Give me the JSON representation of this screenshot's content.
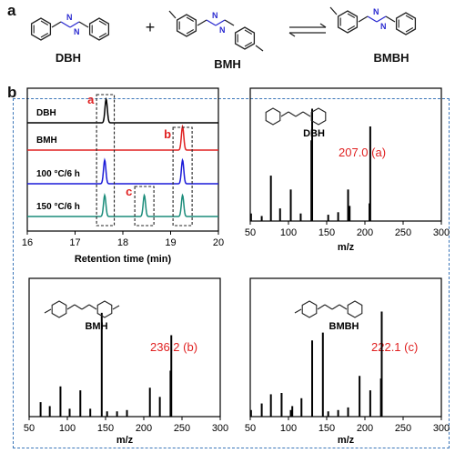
{
  "panel_labels": {
    "a": "a",
    "b": "b"
  },
  "scheme": {
    "compounds": [
      {
        "label": "DBH"
      },
      {
        "label": "BMH"
      },
      {
        "label": "BMBH"
      }
    ],
    "plus": "+",
    "azine_n": "N"
  },
  "colors": {
    "dbh": "#000000",
    "bmh": "#e02020",
    "t100": "#1a1ad8",
    "t150": "#1a8c7a",
    "annot": "#e02020",
    "frame": "#3b76b9",
    "ntext": "#2a2ad0"
  },
  "chart_data": [
    {
      "type": "line",
      "title": "",
      "xlabel": "Retention time (min)",
      "ylabel": "",
      "xlim": [
        16,
        20
      ],
      "xticks": [
        16,
        17,
        18,
        19,
        20
      ],
      "series": [
        {
          "name": "DBH",
          "color": "#000000",
          "peaks": [
            {
              "x": 17.65,
              "height": 1.0
            }
          ]
        },
        {
          "name": "BMH",
          "color": "#e02020",
          "peaks": [
            {
              "x": 19.25,
              "height": 1.0
            }
          ]
        },
        {
          "name": "100 °C/6 h",
          "color": "#1a1ad8",
          "peaks": [
            {
              "x": 17.62,
              "height": 1.0
            },
            {
              "x": 19.25,
              "height": 1.0
            }
          ]
        },
        {
          "name": "150 °C/6 h",
          "color": "#1a8c7a",
          "peaks": [
            {
              "x": 17.62,
              "height": 0.9
            },
            {
              "x": 18.45,
              "height": 0.9
            },
            {
              "x": 19.25,
              "height": 0.9
            }
          ]
        }
      ],
      "annotations": [
        {
          "text": "a",
          "x_range": [
            17.45,
            17.82
          ]
        },
        {
          "text": "c",
          "x_range": [
            18.25,
            18.65
          ]
        },
        {
          "text": "b",
          "x_range": [
            19.05,
            19.45
          ]
        }
      ]
    },
    {
      "type": "bar",
      "title": "DBH",
      "xlabel": "m/z",
      "xlim": [
        50,
        300
      ],
      "xticks": [
        50,
        100,
        150,
        200,
        250,
        300
      ],
      "annotation": "207.0 (a)",
      "x": [
        51,
        65,
        77,
        89,
        103,
        116,
        130,
        131,
        152,
        165,
        178,
        180,
        206,
        207
      ],
      "values": [
        0.06,
        0.04,
        0.36,
        0.1,
        0.25,
        0.06,
        0.64,
        0.89,
        0.05,
        0.07,
        0.25,
        0.12,
        0.14,
        0.75
      ]
    },
    {
      "type": "bar",
      "title": "BMH",
      "xlabel": "m/z",
      "xlim": [
        50,
        300
      ],
      "xticks": [
        50,
        100,
        150,
        200,
        250,
        300
      ],
      "annotation": "236.2 (b)",
      "x": [
        65,
        77,
        91,
        103,
        117,
        130,
        145,
        152,
        165,
        178,
        208,
        221,
        235,
        236
      ],
      "values": [
        0.11,
        0.08,
        0.23,
        0.06,
        0.2,
        0.06,
        0.79,
        0.04,
        0.04,
        0.05,
        0.22,
        0.15,
        0.35,
        0.62
      ]
    },
    {
      "type": "bar",
      "title": "BMBH",
      "xlabel": "m/z",
      "xlim": [
        50,
        300
      ],
      "xticks": [
        50,
        100,
        150,
        200,
        250,
        300
      ],
      "annotation": "222.1 (c)",
      "x": [
        51,
        65,
        77,
        91,
        103,
        105,
        117,
        131,
        145,
        152,
        165,
        178,
        193,
        207,
        221,
        222
      ],
      "values": [
        0.05,
        0.1,
        0.17,
        0.18,
        0.05,
        0.08,
        0.14,
        0.58,
        0.64,
        0.04,
        0.05,
        0.07,
        0.31,
        0.2,
        0.29,
        0.8
      ]
    }
  ]
}
